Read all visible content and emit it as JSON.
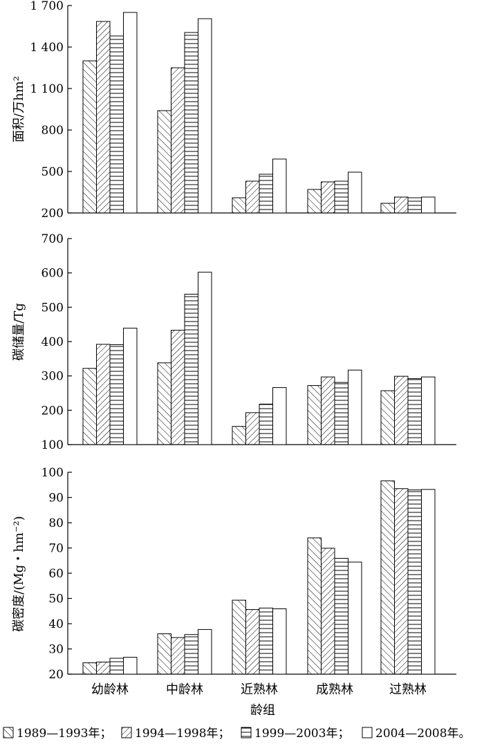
{
  "chart_data": [
    {
      "type": "bar",
      "ylabel": "面积/万hm²",
      "ylim": [
        200,
        1700
      ],
      "yticks": [
        200,
        500,
        800,
        1100,
        1400,
        1700
      ],
      "ytick_labels": [
        "200",
        "500",
        "800",
        "1 100",
        "1 400",
        "1 700"
      ],
      "categories": [
        "幼龄林",
        "中龄林",
        "近熟林",
        "成熟林",
        "过熟林"
      ],
      "series": [
        {
          "name": "1989—1993年",
          "values": [
            1300,
            940,
            310,
            370,
            270
          ]
        },
        {
          "name": "1994—1998年",
          "values": [
            1585,
            1250,
            430,
            425,
            315
          ]
        },
        {
          "name": "1999—2003年",
          "values": [
            1480,
            1505,
            480,
            430,
            310
          ]
        },
        {
          "name": "2004—2008年",
          "values": [
            1650,
            1605,
            590,
            495,
            315
          ]
        }
      ]
    },
    {
      "type": "bar",
      "ylabel": "碳储量/Tg",
      "ylim": [
        100,
        700
      ],
      "yticks": [
        100,
        200,
        300,
        400,
        500,
        600,
        700
      ],
      "ytick_labels": [
        "100",
        "200",
        "300",
        "400",
        "500",
        "600",
        "700"
      ],
      "categories": [
        "幼龄林",
        "中龄林",
        "近熟林",
        "成熟林",
        "过熟林"
      ],
      "series": [
        {
          "name": "1989—1993年",
          "values": [
            322,
            338,
            153,
            272,
            257
          ]
        },
        {
          "name": "1994—1998年",
          "values": [
            392,
            433,
            193,
            297,
            299
          ]
        },
        {
          "name": "1999—2003年",
          "values": [
            391,
            538,
            218,
            281,
            292
          ]
        },
        {
          "name": "2004—2008年",
          "values": [
            439,
            602,
            266,
            317,
            297
          ]
        }
      ]
    },
    {
      "type": "bar",
      "ylabel": "碳密度/(Mg・hm⁻²)",
      "ylim": [
        20,
        100
      ],
      "yticks": [
        20,
        30,
        40,
        50,
        60,
        70,
        80,
        90,
        100
      ],
      "ytick_labels": [
        "20",
        "30",
        "40",
        "50",
        "60",
        "70",
        "80",
        "90",
        "100"
      ],
      "categories": [
        "幼龄林",
        "中龄林",
        "近熟林",
        "成熟林",
        "过熟林"
      ],
      "xlabel": "龄组",
      "series": [
        {
          "name": "1989—1993年",
          "values": [
            24.5,
            36.0,
            49.3,
            74.0,
            96.6
          ]
        },
        {
          "name": "1994—1998年",
          "values": [
            24.8,
            34.5,
            45.6,
            69.9,
            93.5
          ]
        },
        {
          "name": "1999—2003年",
          "values": [
            26.3,
            35.7,
            46.2,
            65.9,
            93.0
          ]
        },
        {
          "name": "2004—2008年",
          "values": [
            26.7,
            37.7,
            45.9,
            64.4,
            93.2
          ]
        }
      ]
    }
  ],
  "legend": {
    "entries": [
      "1989—1993年；",
      "1994—1998年；",
      "1999—2003年；",
      "2004—2008年。"
    ],
    "patterns": [
      "backslash",
      "slash",
      "horizontal",
      "empty"
    ]
  },
  "colors": {
    "ink": "#000000",
    "paper": "#ffffff"
  }
}
